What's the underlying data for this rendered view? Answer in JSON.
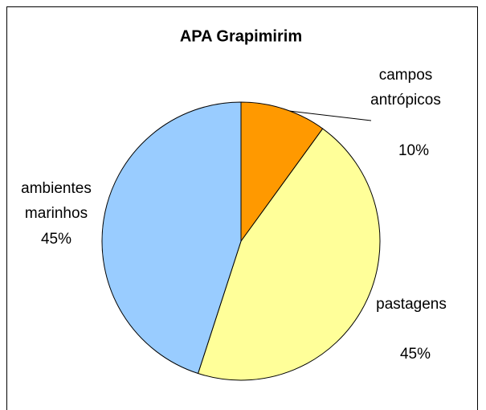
{
  "chart_data": {
    "type": "pie",
    "title": "APA Grapimirim",
    "categories": [
      "campos antrópicos",
      "pastagens",
      "ambientes marinhos"
    ],
    "values": [
      10,
      45,
      45
    ],
    "value_labels": [
      "10%",
      "45%",
      "45%"
    ],
    "colors": [
      "#ff9900",
      "#ffff99",
      "#99ccff"
    ]
  }
}
